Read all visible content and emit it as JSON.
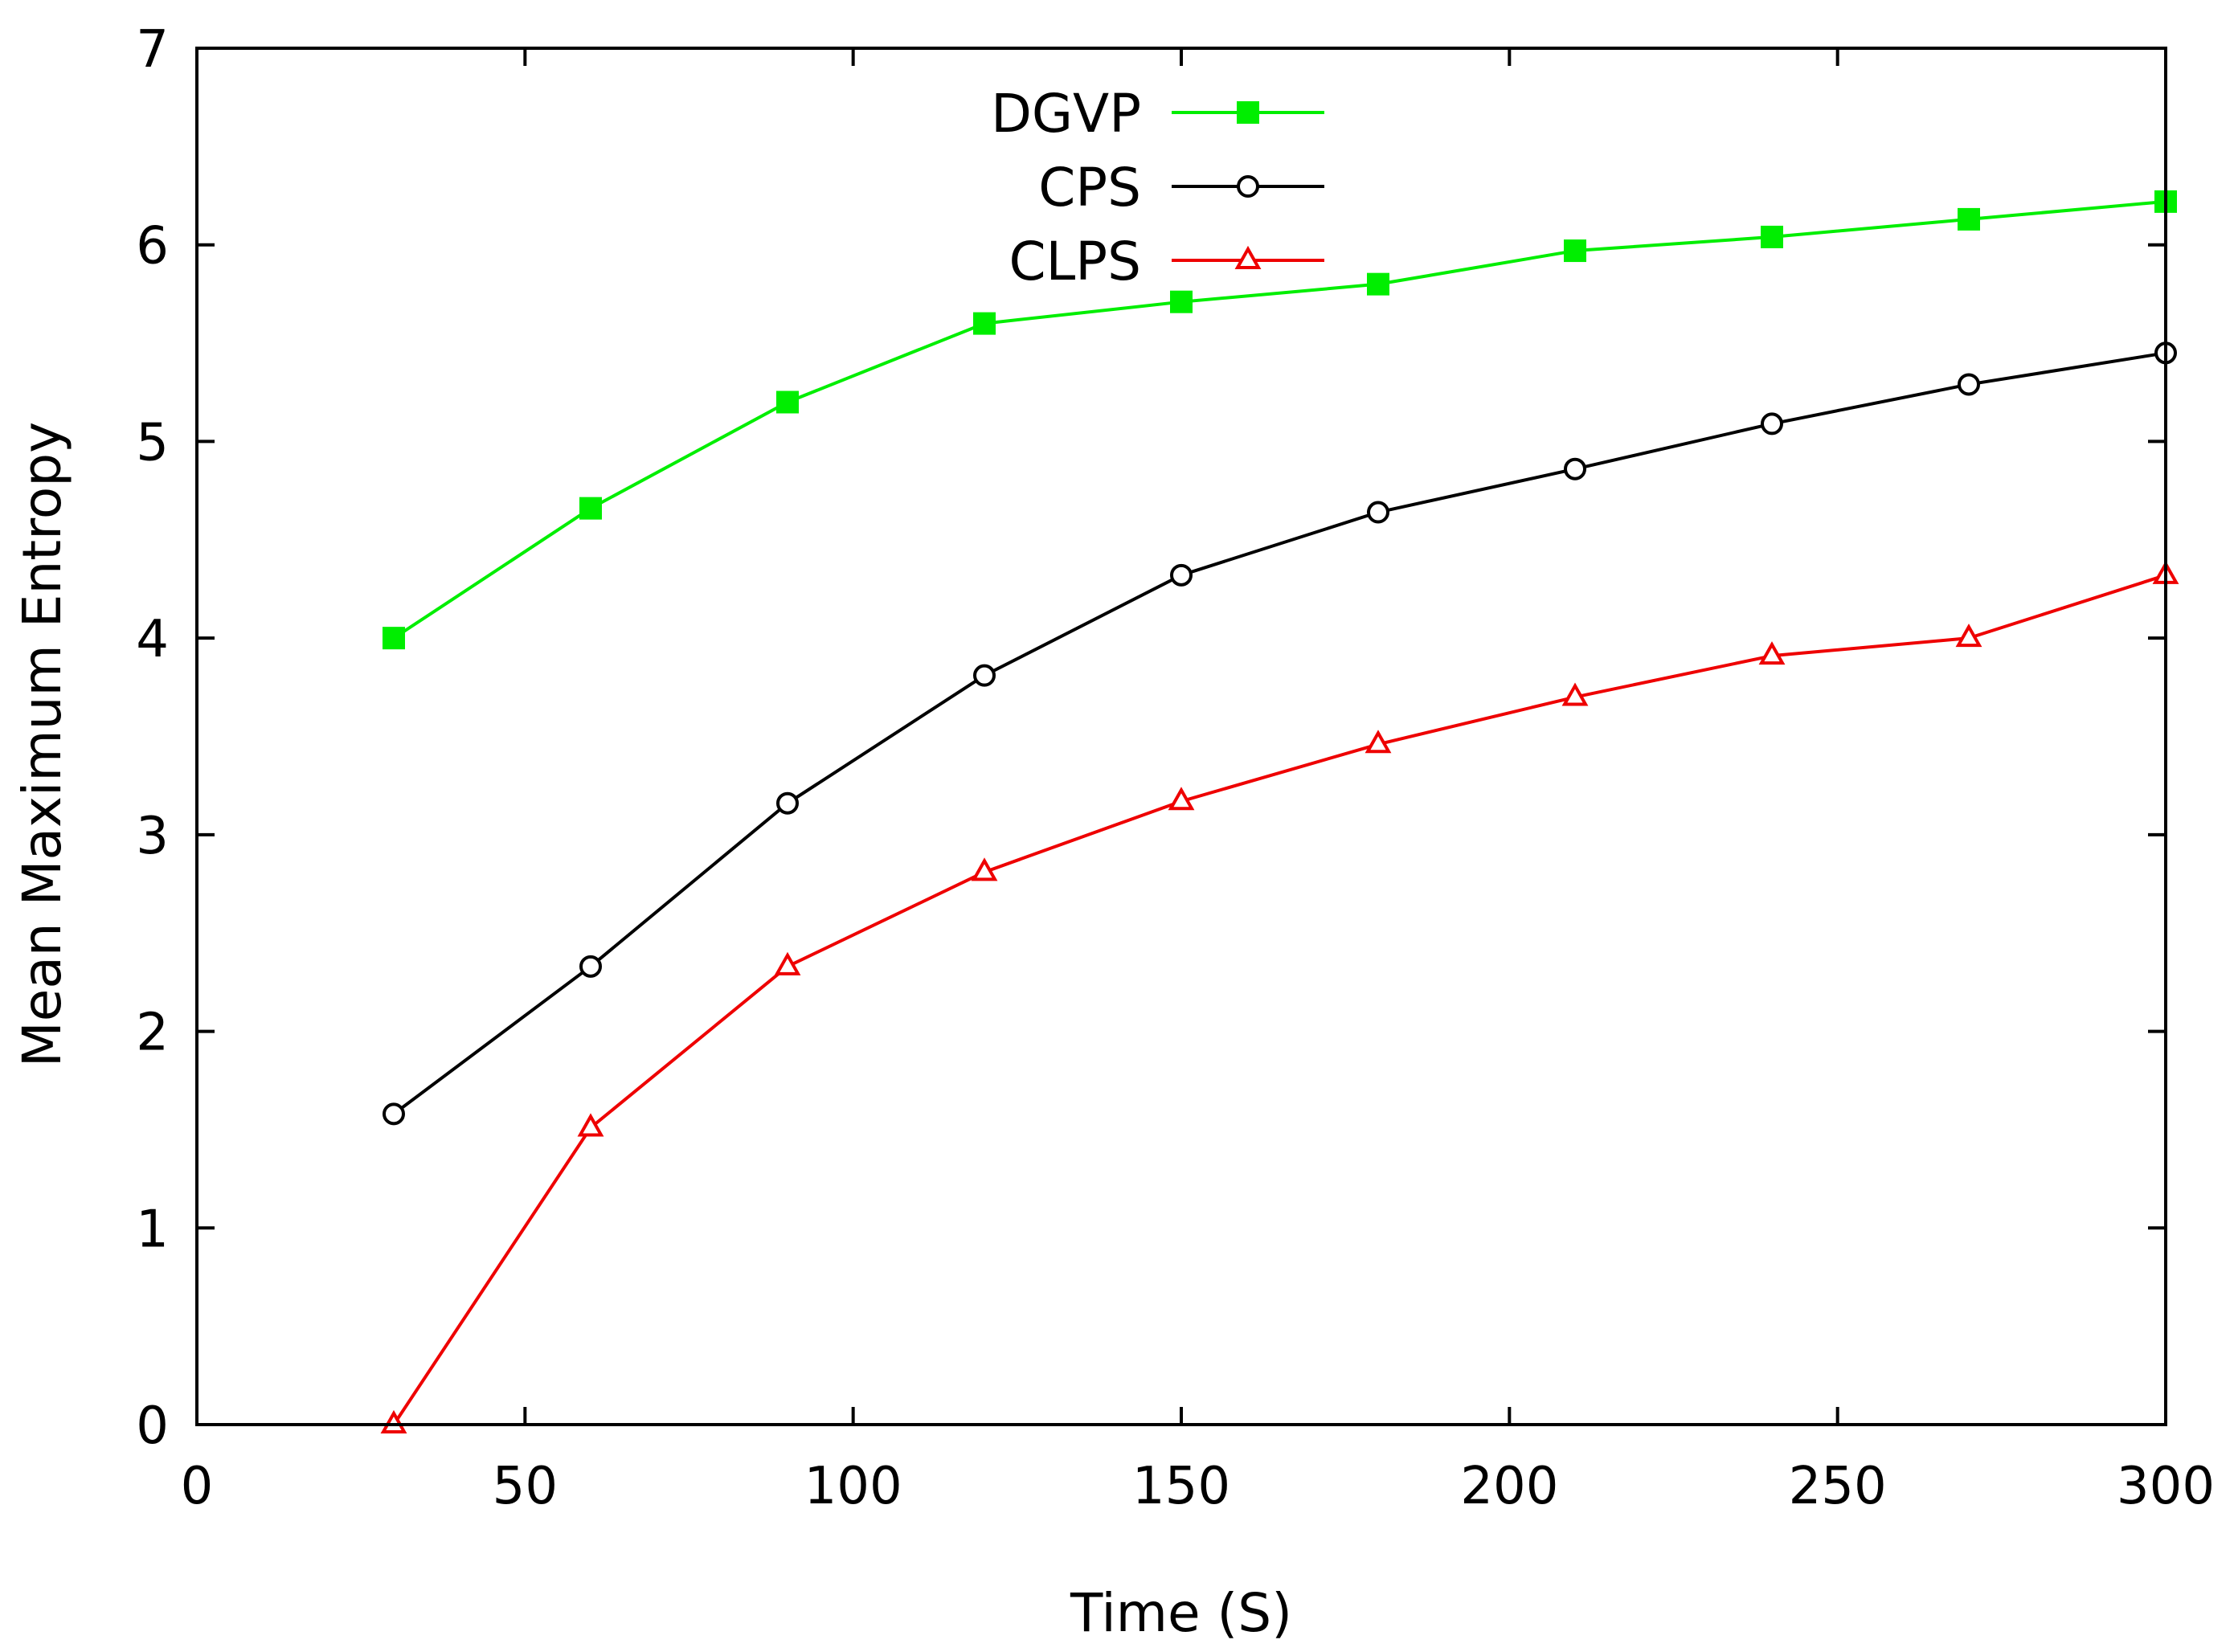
{
  "chart_data": {
    "type": "line",
    "title": "",
    "xlabel": "Time (S)",
    "ylabel": "Mean Maximum Entropy",
    "xlim": [
      0,
      300
    ],
    "ylim": [
      0,
      7
    ],
    "xticks": [
      0,
      50,
      100,
      150,
      200,
      250,
      300
    ],
    "yticks": [
      0,
      1,
      2,
      3,
      4,
      5,
      6,
      7
    ],
    "grid": false,
    "legend_position": "top-center",
    "x": [
      30,
      60,
      90,
      120,
      150,
      180,
      210,
      240,
      270,
      300
    ],
    "series": [
      {
        "name": "DGVP",
        "color": "#00ee00",
        "marker": "filled-square",
        "values": [
          4.0,
          4.66,
          5.2,
          5.6,
          5.71,
          5.8,
          5.97,
          6.04,
          6.13,
          6.22
        ]
      },
      {
        "name": "CPS",
        "color": "#000000",
        "marker": "open-circle",
        "values": [
          1.58,
          2.33,
          3.16,
          3.81,
          4.32,
          4.64,
          4.86,
          5.09,
          5.29,
          5.45
        ]
      },
      {
        "name": "CLPS",
        "color": "#ee0000",
        "marker": "open-triangle",
        "values": [
          0.0,
          1.51,
          2.33,
          2.81,
          3.17,
          3.46,
          3.7,
          3.91,
          4.0,
          4.32
        ]
      }
    ]
  }
}
